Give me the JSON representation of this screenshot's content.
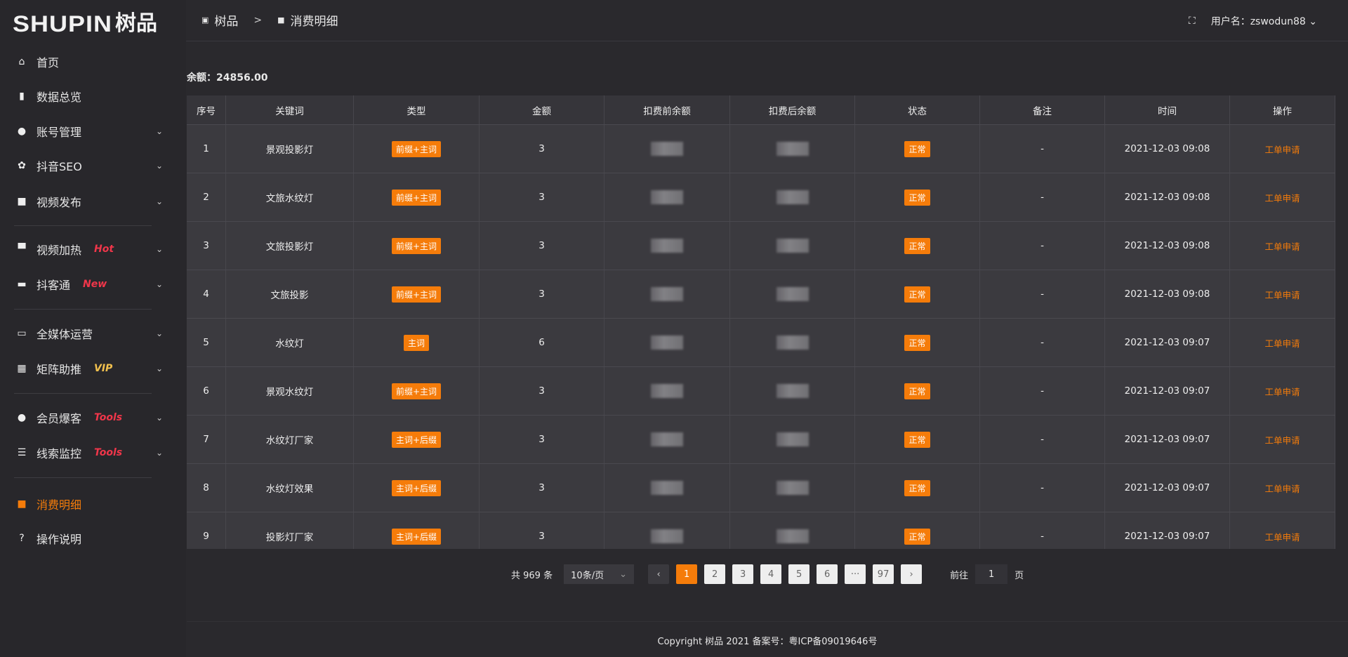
{
  "logo": {
    "en": "SHUPIN",
    "cn": "树品"
  },
  "sidebar": {
    "items": [
      {
        "label": "首页",
        "icon": "home-icon",
        "glyph": "⌂"
      },
      {
        "label": "数据总览",
        "icon": "bar-chart-icon",
        "glyph": "▮"
      },
      {
        "label": "账号管理",
        "icon": "user-icon",
        "glyph": "●",
        "chevron": true
      },
      {
        "label": "抖音SEO",
        "icon": "gear-icon",
        "glyph": "✿",
        "chevron": true
      },
      {
        "label": "视频发布",
        "icon": "camera-icon",
        "glyph": "■",
        "chevron": true
      },
      {
        "label": "视频加热",
        "icon": "billboard-icon",
        "glyph": "▀",
        "tag": "Hot",
        "tag_color": "#f0364a",
        "chevron": true
      },
      {
        "label": "抖客通",
        "icon": "chat-icon",
        "glyph": "▬",
        "tag": "New",
        "tag_color": "#f0364a",
        "chevron": true
      },
      {
        "label": "全媒体运营",
        "icon": "monitor-icon",
        "glyph": "▭",
        "chevron": true
      },
      {
        "label": "矩阵助推",
        "icon": "grid-icon",
        "glyph": "▦",
        "tag": "VIP",
        "tag_color": "#f2c14e",
        "chevron": true
      },
      {
        "label": "会员爆客",
        "icon": "user-icon",
        "glyph": "●",
        "tag": "Tools",
        "tag_color": "#f0364a",
        "chevron": true
      },
      {
        "label": "线索监控",
        "icon": "sliders-icon",
        "glyph": "☰",
        "tag": "Tools",
        "tag_color": "#f0364a",
        "chevron": true
      },
      {
        "label": "消费明细",
        "icon": "wallet-icon",
        "glyph": "■",
        "active": true
      },
      {
        "label": "操作说明",
        "icon": "help-icon",
        "glyph": "?"
      }
    ]
  },
  "breadcrumb": {
    "root": "树品",
    "sep": ">",
    "current": "消费明细"
  },
  "header": {
    "username_label": "用户名：zswodun88"
  },
  "balance": "余额：24856.00",
  "table": {
    "columns": [
      "序号",
      "关键词",
      "类型",
      "金额",
      "扣费前余额",
      "扣费后余额",
      "状态",
      "备注",
      "时间",
      "操作"
    ],
    "rows": [
      {
        "no": "1",
        "keyword": "景观投影灯",
        "type": "前缀+主词",
        "amount": "3",
        "status": "正常",
        "note": "-",
        "time": "2021-12-03 09:08",
        "action": "工单申请"
      },
      {
        "no": "2",
        "keyword": "文旅水纹灯",
        "type": "前缀+主词",
        "amount": "3",
        "status": "正常",
        "note": "-",
        "time": "2021-12-03 09:08",
        "action": "工单申请"
      },
      {
        "no": "3",
        "keyword": "文旅投影灯",
        "type": "前缀+主词",
        "amount": "3",
        "status": "正常",
        "note": "-",
        "time": "2021-12-03 09:08",
        "action": "工单申请"
      },
      {
        "no": "4",
        "keyword": "文旅投影",
        "type": "前缀+主词",
        "amount": "3",
        "status": "正常",
        "note": "-",
        "time": "2021-12-03 09:08",
        "action": "工单申请"
      },
      {
        "no": "5",
        "keyword": "水纹灯",
        "type": "主词",
        "amount": "6",
        "status": "正常",
        "note": "-",
        "time": "2021-12-03 09:07",
        "action": "工单申请"
      },
      {
        "no": "6",
        "keyword": "景观水纹灯",
        "type": "前缀+主词",
        "amount": "3",
        "status": "正常",
        "note": "-",
        "time": "2021-12-03 09:07",
        "action": "工单申请"
      },
      {
        "no": "7",
        "keyword": "水纹灯厂家",
        "type": "主词+后缀",
        "amount": "3",
        "status": "正常",
        "note": "-",
        "time": "2021-12-03 09:07",
        "action": "工单申请"
      },
      {
        "no": "8",
        "keyword": "水纹灯效果",
        "type": "主词+后缀",
        "amount": "3",
        "status": "正常",
        "note": "-",
        "time": "2021-12-03 09:07",
        "action": "工单申请"
      },
      {
        "no": "9",
        "keyword": "投影灯厂家",
        "type": "主词+后缀",
        "amount": "3",
        "status": "正常",
        "note": "-",
        "time": "2021-12-03 09:07",
        "action": "工单申请"
      }
    ]
  },
  "pagination": {
    "total": "共 969 条",
    "page_size": "10条/页",
    "pages": [
      "1",
      "2",
      "3",
      "4",
      "5",
      "6",
      "···",
      "97"
    ],
    "current": "1",
    "goto_label": "前往",
    "goto_value": "1",
    "goto_suffix": "页"
  },
  "footer": "Copyright 树品 2021 备案号：粤ICP备09019646号",
  "colors": {
    "accent": "#f57c0a",
    "background": "#2a292d",
    "table": "#3b3a3f"
  }
}
